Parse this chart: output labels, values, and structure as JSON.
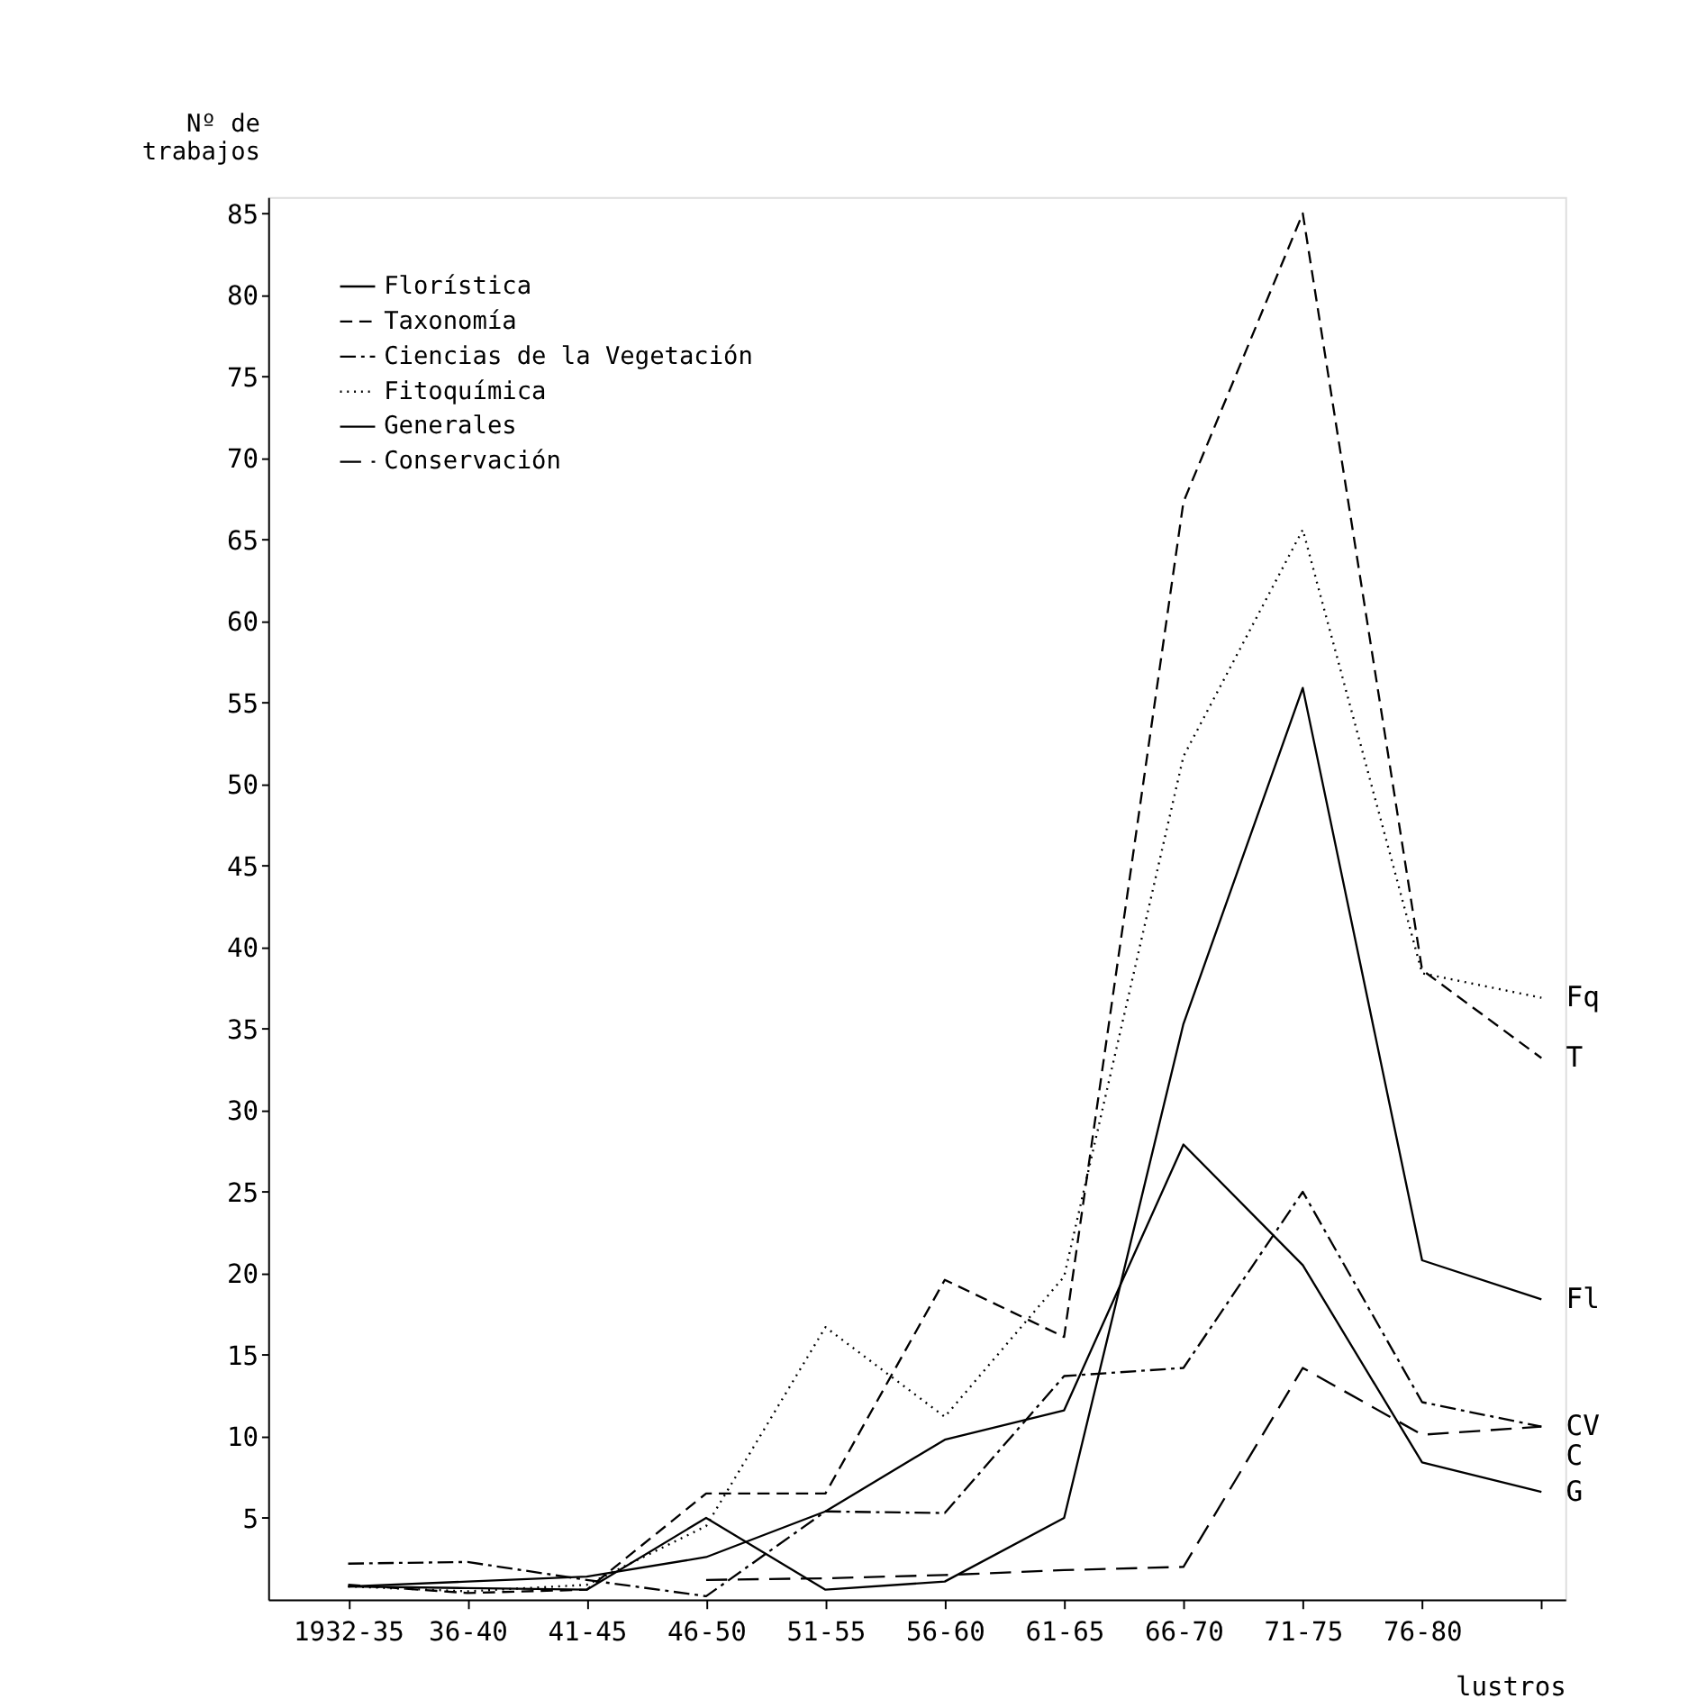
{
  "chart_data": {
    "type": "line",
    "xlabel": "lustros",
    "ylabel": "Nº de trabajos",
    "categories": [
      "1932-35",
      "36-40",
      "41-45",
      "46-50",
      "51-55",
      "56-60",
      "61-65",
      "66-70",
      "71-75",
      "76-80",
      null
    ],
    "ylim": [
      0,
      86
    ],
    "yticks": [
      5,
      10,
      15,
      20,
      25,
      30,
      35,
      40,
      45,
      50,
      55,
      60,
      65,
      70,
      75,
      80,
      85
    ],
    "grid": false,
    "legend": "top left",
    "marker": "none",
    "series": [
      {
        "name": "Florística",
        "color": "#000000",
        "line_style": "solid",
        "values": [
          0.8,
          0.7,
          0.6,
          5.0,
          0.6,
          1.1,
          5.0,
          35.3,
          55.9,
          20.8,
          18.4
        ]
      },
      {
        "name": "Taxonomía",
        "color": "#000000",
        "line_style": "dashed",
        "values": [
          0.9,
          0.4,
          0.6,
          6.5,
          6.5,
          19.6,
          16.1,
          67.3,
          85,
          38.6,
          33.2
        ]
      },
      {
        "name": "Ciencias de la Vegetación",
        "color": "#000000",
        "line_style": "dashdot",
        "values": [
          2.2,
          2.3,
          1.2,
          0.2,
          5.4,
          5.3,
          13.7,
          14.2,
          25.0,
          12.1,
          10.6
        ]
      },
      {
        "name": "Fitoquímica",
        "color": "#000000",
        "line_style": "dotted",
        "values": [
          0.8,
          0.5,
          0.9,
          4.5,
          16.7,
          11.2,
          19.8,
          51.7,
          65.6,
          38.4,
          36.9
        ]
      },
      {
        "name": "Generales",
        "color": "#000000",
        "line_style": "solid",
        "values": [
          0.8,
          1.1,
          1.4,
          2.6,
          5.4,
          9.8,
          11.6,
          27.9,
          20.5,
          8.4,
          6.6
        ]
      },
      {
        "name": "Conservación",
        "color": "#000000",
        "line_style": "dashed",
        "values": [
          null,
          null,
          null,
          1.2,
          1.3,
          1.5,
          1.8,
          2.0,
          14.2,
          10.1,
          10.6
        ]
      }
    ],
    "annotations": [
      "Fq",
      "T",
      "Fl",
      "CV",
      "C",
      "G"
    ]
  }
}
